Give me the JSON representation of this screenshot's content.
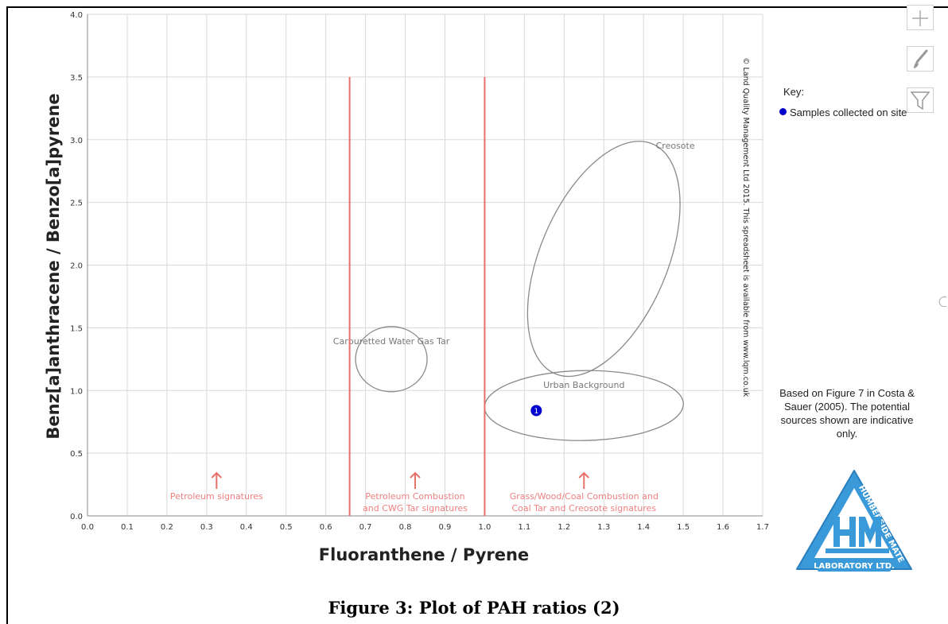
{
  "chart_data": {
    "type": "scatter",
    "xlabel": "Fluoranthene / Pyrene",
    "ylabel": "Benz[a]anthracene / Benzo[a]pyrene",
    "xlim": [
      0.0,
      1.7
    ],
    "ylim": [
      0.0,
      4.0
    ],
    "x_ticks": [
      "0.0",
      "0.1",
      "0.2",
      "0.3",
      "0.4",
      "0.5",
      "0.6",
      "0.7",
      "0.8",
      "0.9",
      "1.0",
      "1.1",
      "1.2",
      "1.3",
      "1.4",
      "1.5",
      "1.6",
      "1.7"
    ],
    "y_ticks": [
      "0.0",
      "0.5",
      "1.0",
      "1.5",
      "2.0",
      "2.5",
      "3.0",
      "3.5",
      "4.0"
    ],
    "grid": true,
    "series": [
      {
        "name": "Samples collected on site",
        "points": [
          {
            "x": 1.13,
            "y": 0.84,
            "label": "1"
          }
        ]
      }
    ],
    "vertical_lines": [
      {
        "x": 0.66,
        "y_top": 3.5
      },
      {
        "x": 1.0,
        "y_top": 3.5
      }
    ],
    "region_labels": [
      {
        "lines": [
          "Petroleum signatures"
        ],
        "x": 0.325
      },
      {
        "lines": [
          "Petroleum Combustion",
          "and CWG Tar signatures"
        ],
        "x": 0.825
      },
      {
        "lines": [
          "Grass/Wood/Coal Combustion and",
          "Coal Tar and Creosote signatures"
        ],
        "x": 1.25
      }
    ],
    "zones": [
      {
        "label": "Carburetted Water Gas Tar",
        "cx": 0.765,
        "cy": 1.25
      },
      {
        "label": "Urban Background",
        "cx": 1.25,
        "cy": 0.88
      },
      {
        "label": "Creosote",
        "cx": 1.3,
        "cy": 2.05
      }
    ],
    "copyright": "© Land Quality Management Ltd 2015.  This spreadsheet is available from  www.lqm.co.uk",
    "legend_position": "right"
  },
  "key": {
    "title": "Key:",
    "entry": "Samples collected on site"
  },
  "note": "Based on Figure 7 in Costa & Sauer (2005).  The potential sources shown are indicative only.",
  "caption": "Figure 3: Plot of PAH ratios (2)",
  "logo": {
    "top_text": "HUMBERSIDE MATERIALS",
    "bottom_text": "LABORATORY LTD.",
    "monogram": "HML",
    "color": "#3a9ad9"
  },
  "toolbar": {
    "icons": [
      "plus-icon",
      "brush-icon",
      "filter-icon"
    ]
  },
  "colors": {
    "sample": "#0000cc",
    "boundary": "#e8706a",
    "region_text": "#f08080",
    "zone": "#8a8a8a"
  }
}
